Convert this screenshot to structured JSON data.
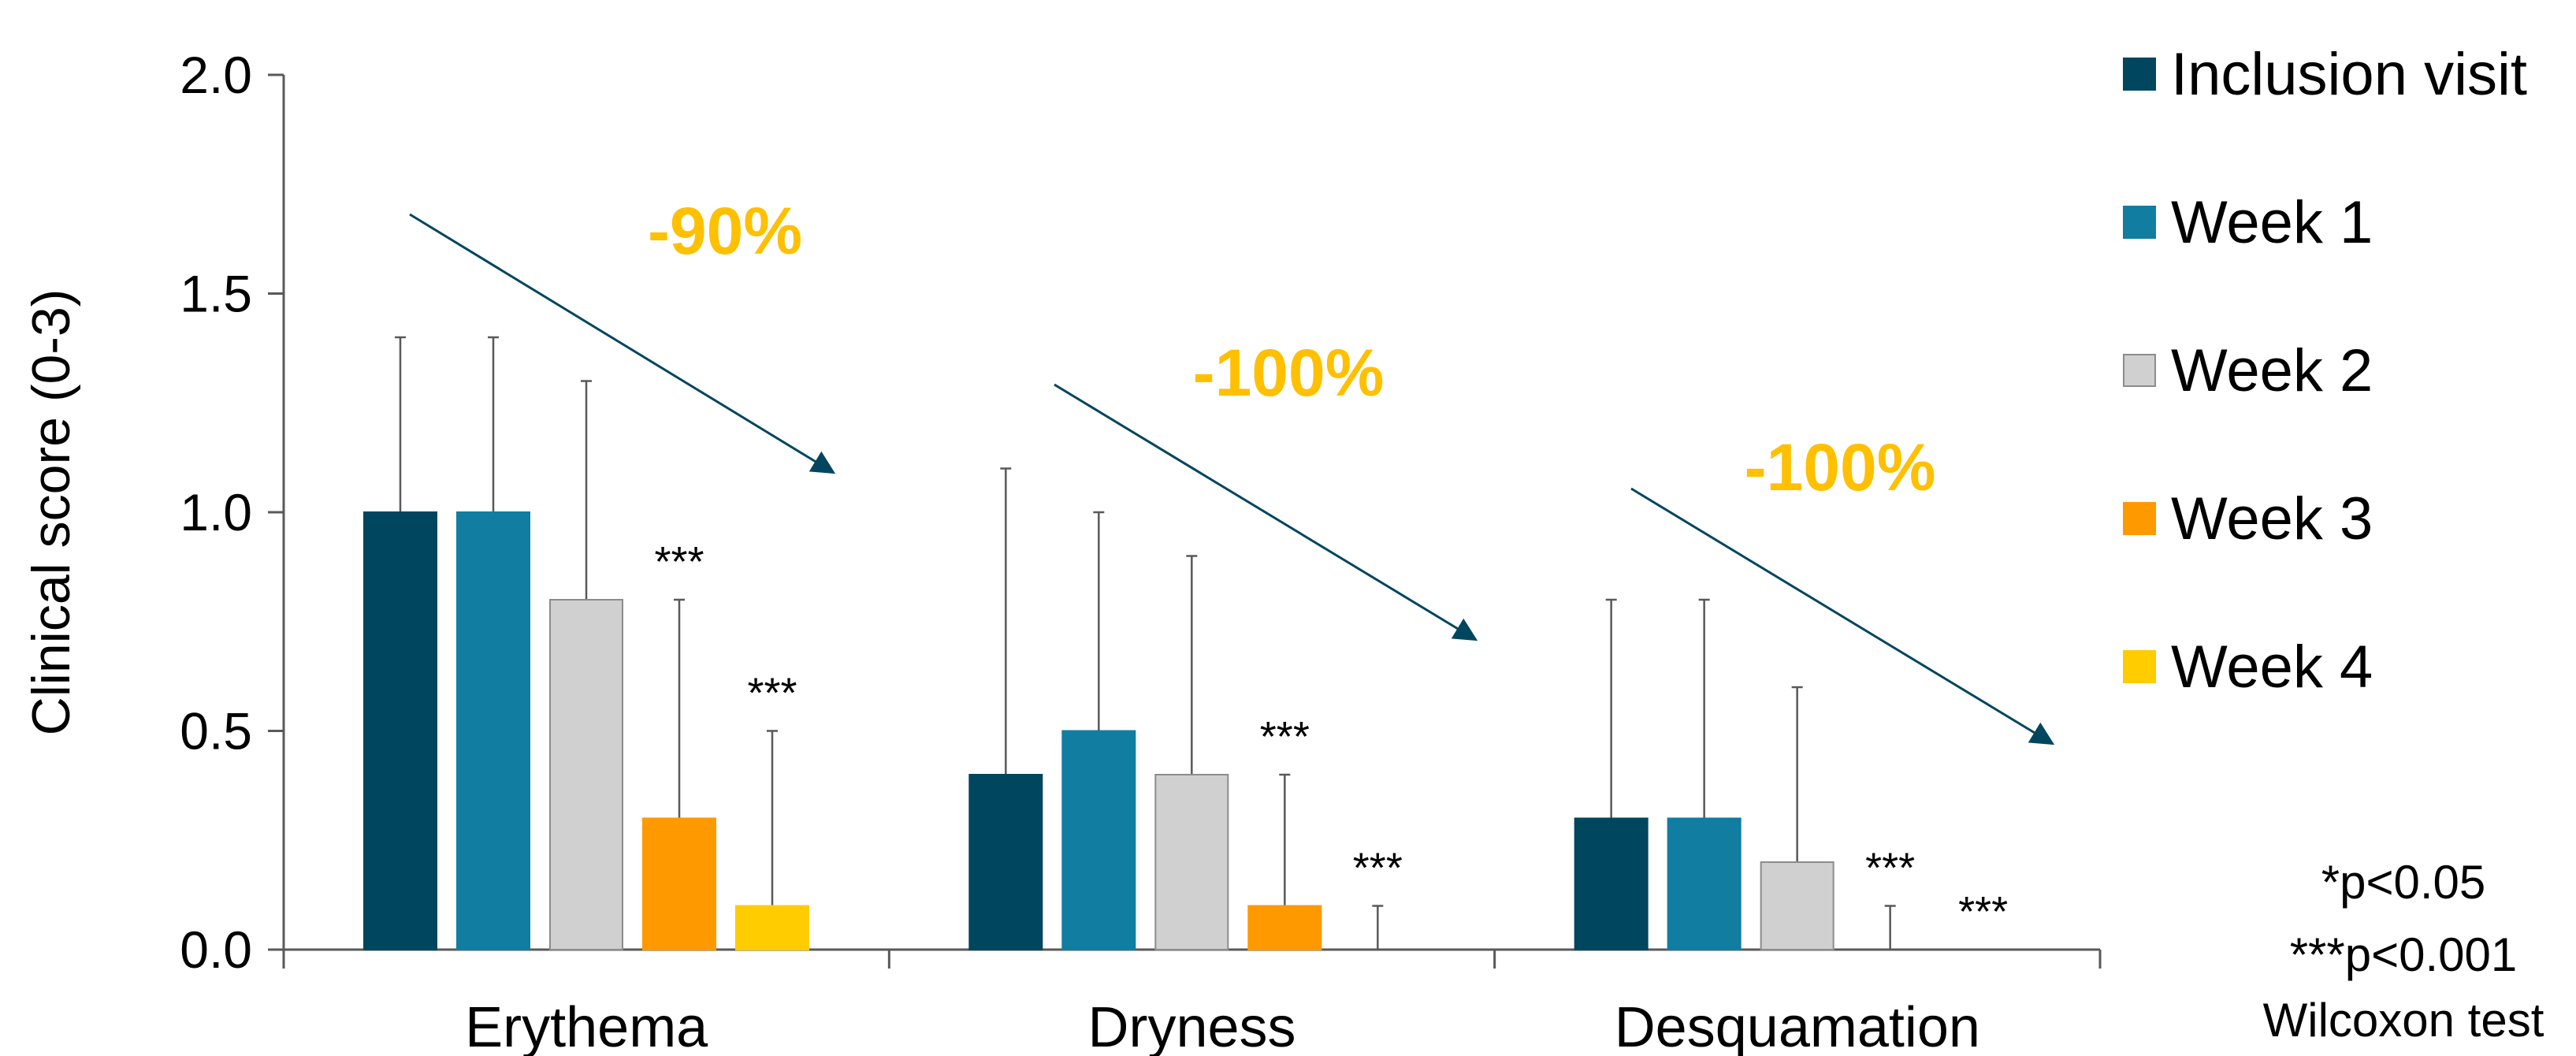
{
  "chart_data": {
    "type": "bar",
    "ylabel": "Clinical score (0-3)",
    "ylim": [
      0,
      2.0
    ],
    "yticks": [
      "0.0",
      "0.5",
      "1.0",
      "1.5",
      "2.0"
    ],
    "categories": [
      "Erythema",
      "Dryness",
      "Desquamation"
    ],
    "series": [
      {
        "name": "Inclusion visit",
        "color": "#00465E",
        "values": [
          1.0,
          0.4,
          0.3
        ],
        "errors": [
          1.4,
          1.1,
          0.8
        ],
        "sig": [
          "",
          "",
          ""
        ]
      },
      {
        "name": "Week 1",
        "color": "#117DA0",
        "values": [
          1.0,
          0.5,
          0.3
        ],
        "errors": [
          1.4,
          1.0,
          0.8
        ],
        "sig": [
          "",
          "",
          ""
        ]
      },
      {
        "name": "Week 2",
        "color": "#D0D0D0",
        "values": [
          0.8,
          0.4,
          0.2
        ],
        "errors": [
          1.3,
          0.9,
          0.6
        ],
        "sig": [
          "",
          "",
          ""
        ]
      },
      {
        "name": "Week 3",
        "color": "#FF9900",
        "values": [
          0.3,
          0.1,
          0.0
        ],
        "errors": [
          0.8,
          0.4,
          0.1
        ],
        "sig": [
          "***",
          "***",
          "***"
        ]
      },
      {
        "name": "Week 4",
        "color": "#FFCC00",
        "values": [
          0.1,
          0.0,
          0.0
        ],
        "errors": [
          0.5,
          0.1,
          0.0
        ],
        "sig": [
          "***",
          "***",
          "***"
        ]
      }
    ],
    "annotations": [
      "-90%",
      "-100%",
      "-100%"
    ],
    "notes": [
      "*p<0.05",
      "***p<0.001",
      "Wilcoxon test"
    ],
    "legend_position": "right",
    "grid": false
  }
}
